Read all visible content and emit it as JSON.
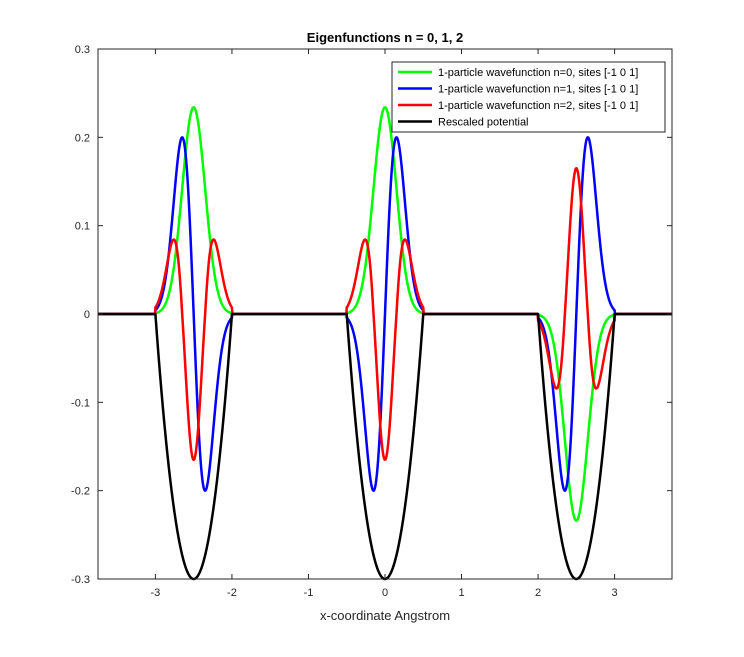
{
  "chart_data": {
    "type": "line",
    "title": "Eigenfunctions n = 0, 1, 2",
    "xlabel": "x-coordinate Angstrom",
    "ylabel": "",
    "xlim": [
      -3.75,
      3.75
    ],
    "ylim": [
      -0.3,
      0.3
    ],
    "xticks": [
      -3,
      -2,
      -1,
      0,
      1,
      2,
      3
    ],
    "xtick_labels": [
      "-3",
      "-2",
      "-1",
      "0",
      "1",
      "2",
      "3"
    ],
    "yticks": [
      -0.3,
      -0.2,
      -0.1,
      0,
      0.1,
      0.2,
      0.3
    ],
    "ytick_labels": [
      "-0.3",
      "-0.2",
      "-0.1",
      "0",
      "0.1",
      "0.2",
      "0.3"
    ],
    "grid": false,
    "legend_location": "top-right",
    "well_centers": [
      -2.5,
      0,
      2.5
    ],
    "well_half_width": 0.5,
    "series": [
      {
        "name": "1-particle wavefunction n=0, sites [-1 0 1]",
        "color": "#00ff00",
        "kind": "ho",
        "n": 0,
        "signs": [
          1,
          1,
          -1
        ],
        "amplitude": 0.234,
        "alpha": 0.15
      },
      {
        "name": "1-particle wavefunction n=1, sites [-1 0 1]",
        "color": "#0000ff",
        "kind": "ho",
        "n": 1,
        "signs": [
          -1,
          1,
          1
        ],
        "amplitude": 0.2,
        "alpha": 0.15
      },
      {
        "name": "1-particle wavefunction n=2, sites [-1 0 1]",
        "color": "#ff0000",
        "kind": "ho",
        "n": 2,
        "signs": [
          -1,
          -1,
          1
        ],
        "amplitude": 0.189,
        "center_value": -0.165,
        "alpha": 0.15
      },
      {
        "name": "Rescaled potential",
        "color": "#000000",
        "kind": "potential",
        "depth": 0.3
      }
    ]
  }
}
